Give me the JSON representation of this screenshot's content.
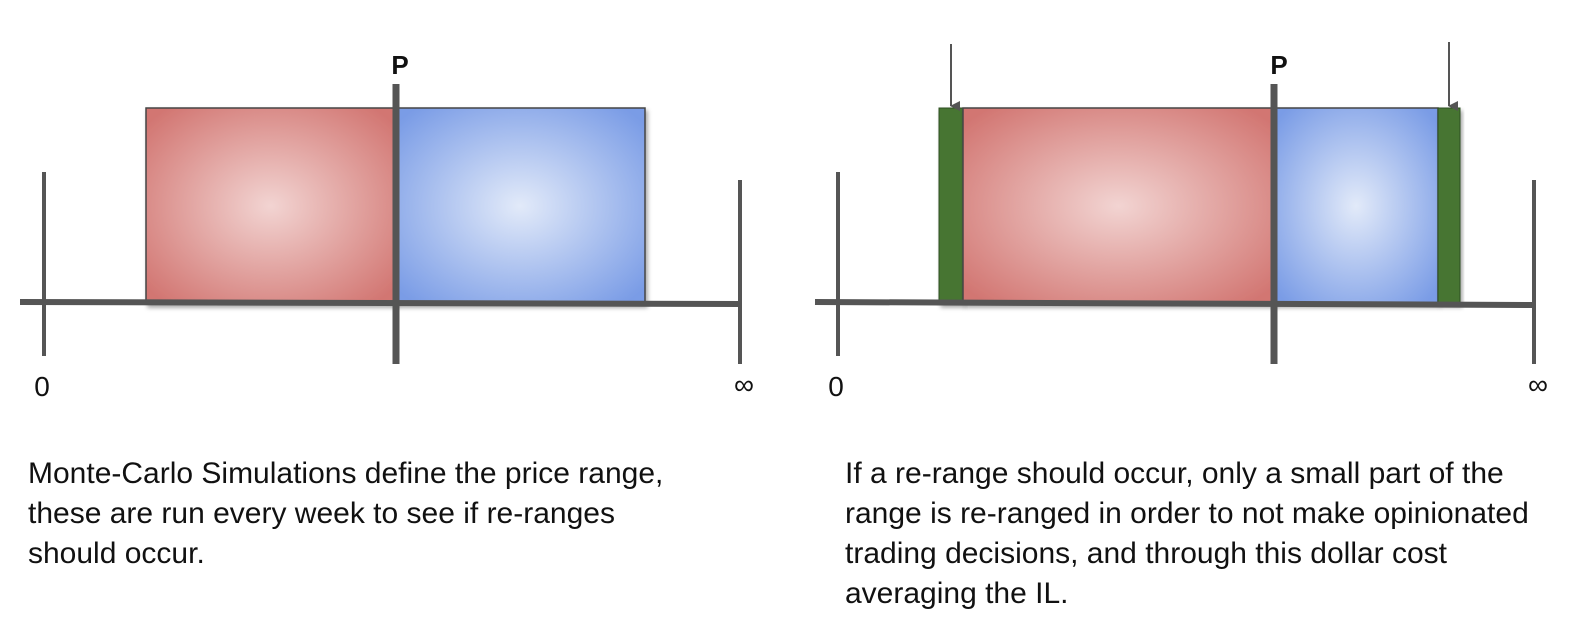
{
  "left_panel": {
    "price_label": "P",
    "zero_label": "0",
    "infinity_label": "∞",
    "caption": "Monte-Carlo Simulations define the price range, these are run every week to see if re-ranges should occur."
  },
  "right_panel": {
    "price_label": "P",
    "zero_label": "0",
    "infinity_label": "∞",
    "caption": "If a re-range should occur, only a small part of the range is re-ranged in order to not make opinionated trading decisions, and through this dollar cost averaging the IL."
  },
  "colors": {
    "red_fill": "#d27672",
    "red_center": "#f2d4d2",
    "blue_fill": "#7a9ce6",
    "blue_center": "#e2eaf9",
    "green_fill": "#467530",
    "axis_line": "#555555"
  }
}
